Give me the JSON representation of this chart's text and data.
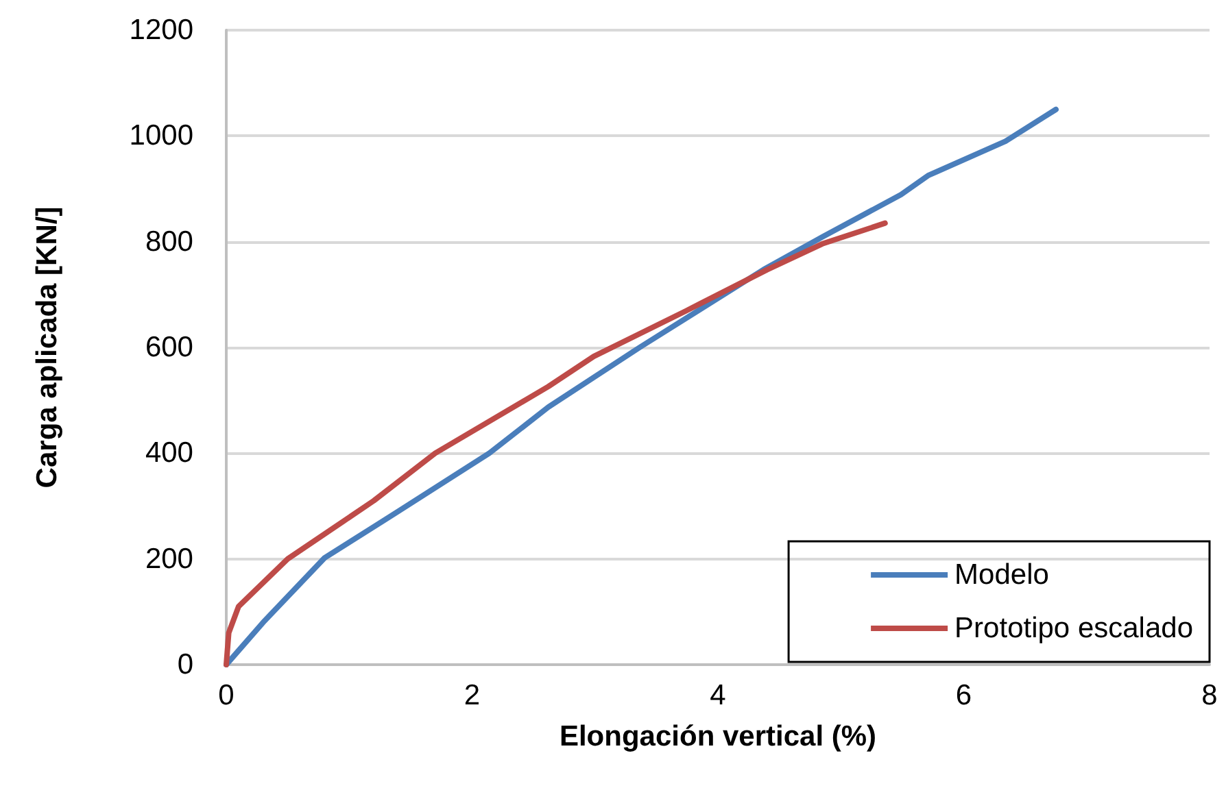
{
  "chart_data": {
    "type": "line",
    "xlabel": "Elongación vertical (%)",
    "ylabel": "Carga aplicada [KN/]",
    "xlim": [
      0,
      8
    ],
    "xticks": [
      0,
      2,
      4,
      6,
      8
    ],
    "ylim": [
      0,
      1200
    ],
    "yticks": [
      0,
      200,
      400,
      600,
      800,
      1000,
      1200
    ],
    "grid": "y",
    "legend": "bottom right",
    "marker": "none",
    "line_style": "solid",
    "series": [
      {
        "name": "Modelo",
        "color": "#4a7ebb",
        "x": [
          0,
          0.3,
          0.8,
          1.4,
          2.14,
          2.62,
          3.37,
          4.37,
          4.85,
          5.49,
          5.71,
          6.34,
          6.75
        ],
        "values": [
          0,
          80,
          202,
          290,
          400,
          487,
          601,
          747,
          809,
          889,
          925,
          990,
          1050
        ]
      },
      {
        "name": "Prototipo escalado",
        "color": "#be4b48",
        "x": [
          0,
          0.02,
          0.1,
          0.5,
          1.2,
          1.7,
          2.62,
          2.99,
          3.74,
          4.4,
          4.85,
          5.36
        ],
        "values": [
          0,
          60,
          110,
          200,
          310,
          400,
          526,
          583,
          669,
          747,
          796,
          835
        ]
      }
    ]
  }
}
